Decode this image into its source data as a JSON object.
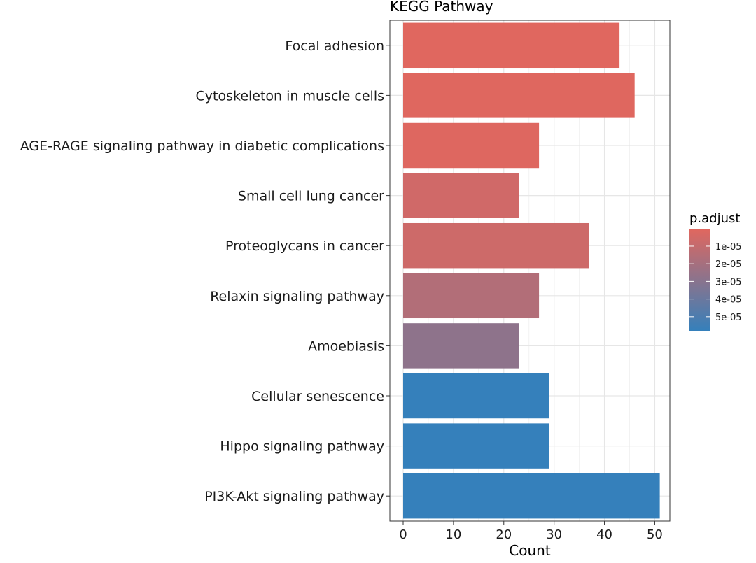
{
  "chart_data": {
    "type": "bar",
    "orientation": "horizontal",
    "title": "KEGG Pathway",
    "xlabel": "Count",
    "ylabel": "",
    "xlim": [
      0,
      53
    ],
    "xticks": [
      0,
      10,
      20,
      30,
      40,
      50
    ],
    "grid": true,
    "categories": [
      "Focal adhesion",
      "Cytoskeleton in muscle cells",
      "AGE-RAGE signaling pathway in diabetic complications",
      "Small cell lung cancer",
      "Proteoglycans in cancer",
      "Relaxin signaling pathway",
      "Amoebiasis",
      "Cellular senescence",
      "Hippo signaling pathway",
      "PI3K-Akt signaling pathway"
    ],
    "values": [
      43,
      46,
      27,
      23,
      37,
      27,
      23,
      29,
      29,
      51
    ],
    "p_adjust": [
      5e-07,
      8e-07,
      1.2e-06,
      6e-06,
      7e-06,
      1.6e-05,
      2.8e-05,
      5.8e-05,
      5.8e-05,
      5.8e-05
    ],
    "legend": {
      "title": "p.adjust",
      "position": "right",
      "ticks": [
        1e-05,
        2e-05,
        3e-05,
        4e-05,
        5e-05
      ],
      "tick_labels": [
        "1e-05",
        "2e-05",
        "3e-05",
        "4e-05",
        "5e-05"
      ],
      "range": [
        5e-07,
        5.8e-05
      ],
      "color_low": "#e0675f",
      "color_high": "#3580bb"
    }
  }
}
